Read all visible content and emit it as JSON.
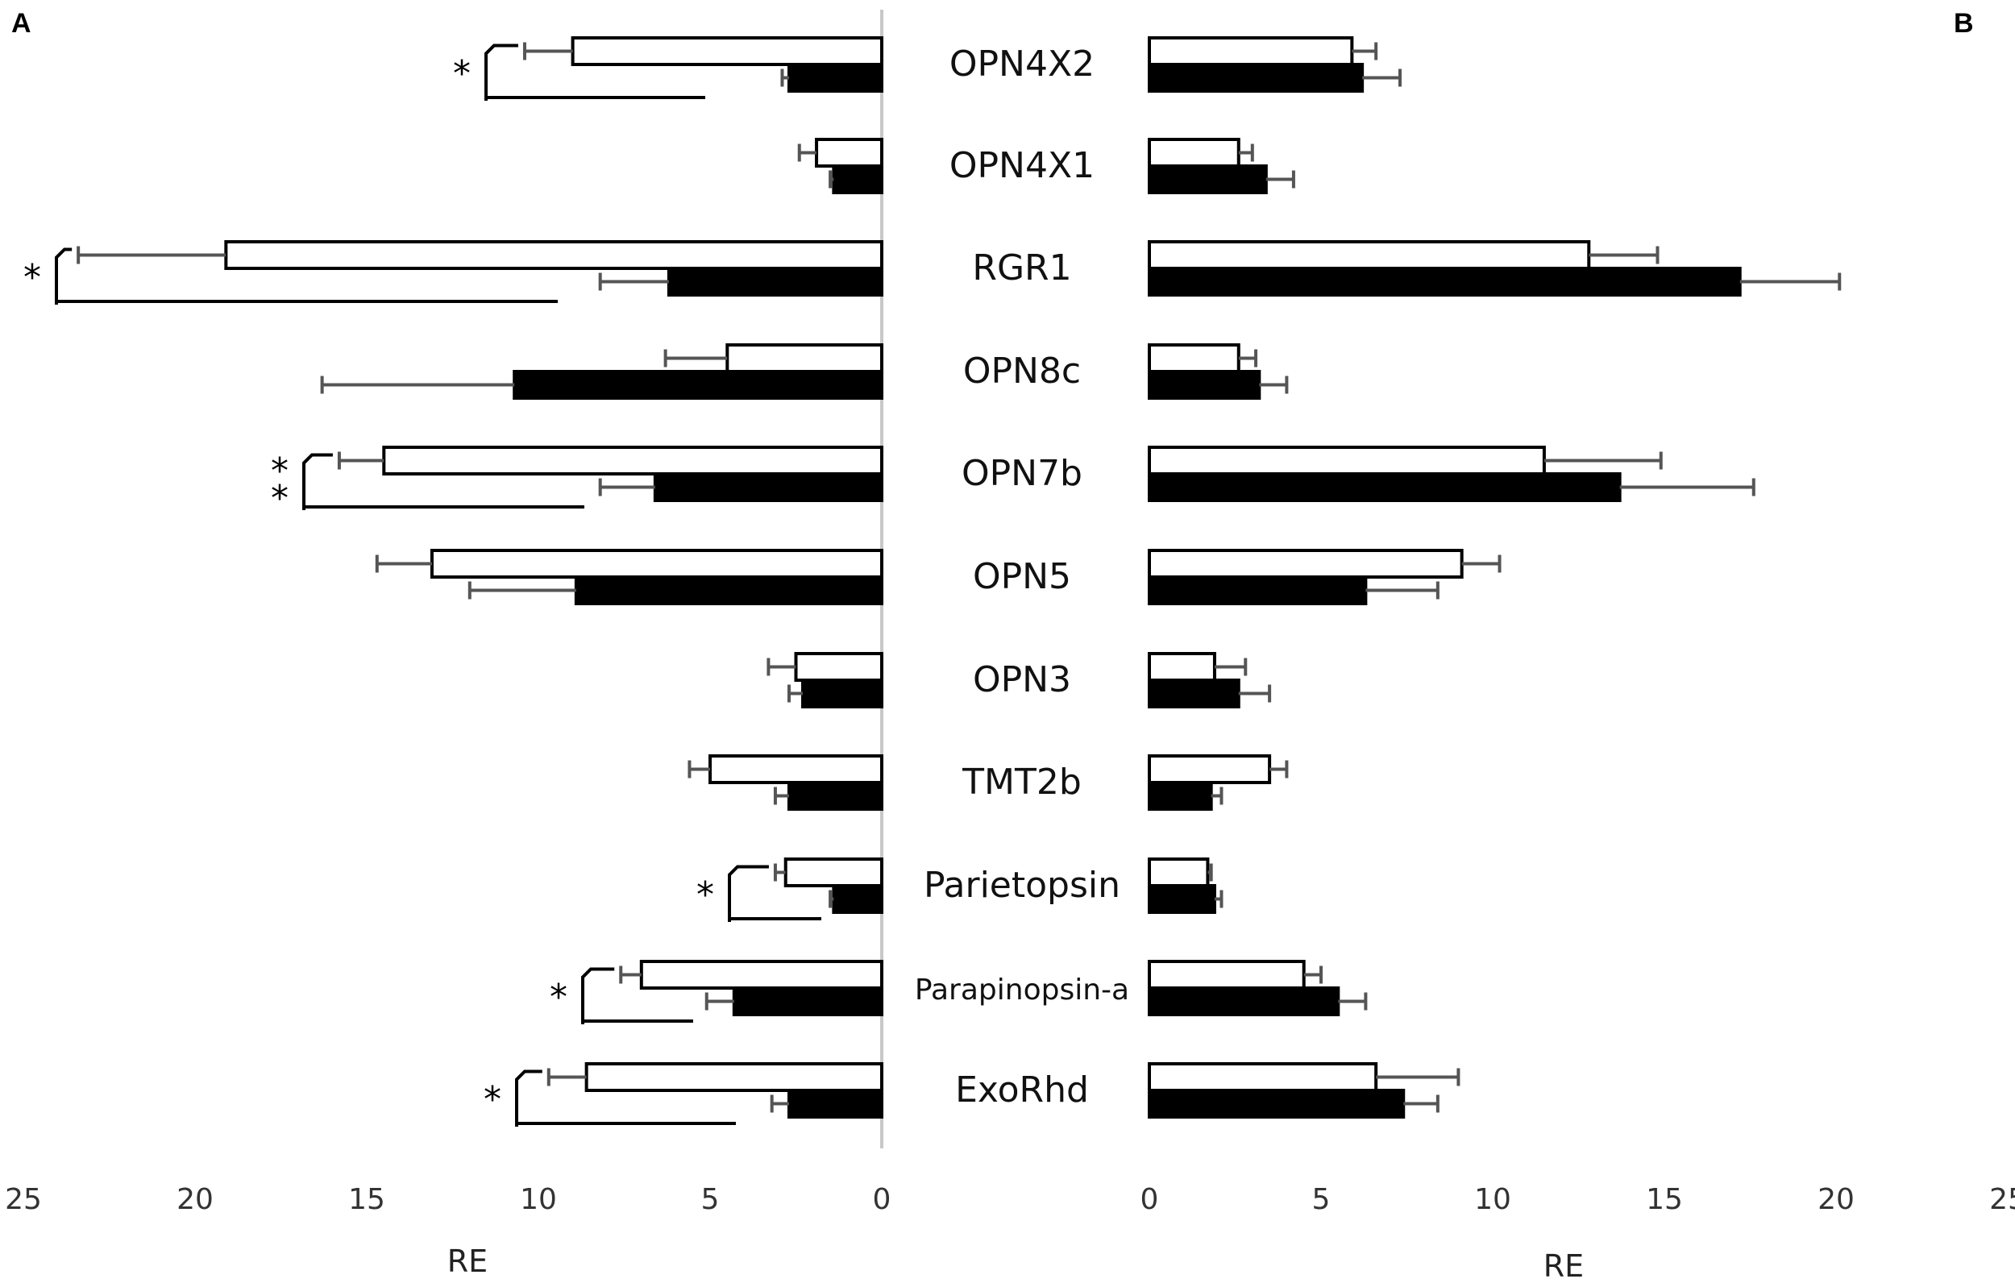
{
  "panels": {
    "left_letter": "A",
    "right_letter": "B"
  },
  "chart_data": [
    {
      "panel": "A",
      "type": "bar",
      "orientation": "horizontal",
      "direction": "right-to-left",
      "xlabel": "RE",
      "xlim": [
        0,
        25
      ],
      "xticks": [
        25,
        20,
        15,
        10,
        5,
        0
      ],
      "categories": [
        "OPN4X2",
        "OPN4X1",
        "RGR1",
        "OPN8c",
        "OPN7b",
        "OPN5",
        "OPN3",
        "TMT2b",
        "Parietopsin",
        "Parapinopsin-a",
        "ExoRhd"
      ],
      "series": [
        {
          "fill": "white",
          "color": "#ffffff",
          "values": [
            9.0,
            1.9,
            19.1,
            4.5,
            14.5,
            13.1,
            2.5,
            5.0,
            2.8,
            7.0,
            8.6
          ],
          "errors": [
            1.4,
            0.5,
            4.3,
            1.8,
            1.3,
            1.6,
            0.8,
            0.6,
            0.3,
            0.6,
            1.1
          ]
        },
        {
          "fill": "black",
          "color": "#000000",
          "values": [
            2.7,
            1.4,
            6.2,
            10.7,
            6.6,
            8.9,
            2.3,
            2.7,
            1.4,
            4.3,
            2.7
          ],
          "errors": [
            0.2,
            0.1,
            2.0,
            5.6,
            1.6,
            3.1,
            0.4,
            0.4,
            0.1,
            0.8,
            0.5
          ]
        }
      ],
      "significance": [
        {
          "category": "OPN4X2",
          "marker": "*"
        },
        {
          "category": "RGR1",
          "marker": "*"
        },
        {
          "category": "OPN7b",
          "marker": "**"
        },
        {
          "category": "Parietopsin",
          "marker": "*"
        },
        {
          "category": "Parapinopsin-a",
          "marker": "*"
        },
        {
          "category": "ExoRhd",
          "marker": "*"
        }
      ]
    },
    {
      "panel": "B",
      "type": "bar",
      "orientation": "horizontal",
      "direction": "left-to-right",
      "xlabel": "RE",
      "xlim": [
        0,
        25
      ],
      "xticks": [
        0,
        5,
        10,
        15,
        20,
        25
      ],
      "categories": [
        "OPN4X2",
        "OPN4X1",
        "RGR1",
        "OPN8c",
        "OPN7b",
        "OPN5",
        "OPN3",
        "TMT2b",
        "Parietopsin",
        "Parapinopsin-a",
        "ExoRhd"
      ],
      "series": [
        {
          "fill": "white",
          "color": "#ffffff",
          "values": [
            5.9,
            2.6,
            12.8,
            2.6,
            11.5,
            9.1,
            1.9,
            3.5,
            1.7,
            4.5,
            6.6
          ],
          "errors": [
            0.7,
            0.4,
            2.0,
            0.5,
            3.4,
            1.1,
            0.9,
            0.5,
            0.1,
            0.5,
            2.4
          ]
        },
        {
          "fill": "black",
          "color": "#000000",
          "values": [
            6.2,
            3.4,
            17.2,
            3.2,
            13.7,
            6.3,
            2.6,
            1.8,
            1.9,
            5.5,
            7.4
          ],
          "errors": [
            1.1,
            0.8,
            2.9,
            0.8,
            3.9,
            2.1,
            0.9,
            0.3,
            0.2,
            0.8,
            1.0
          ]
        }
      ]
    }
  ]
}
